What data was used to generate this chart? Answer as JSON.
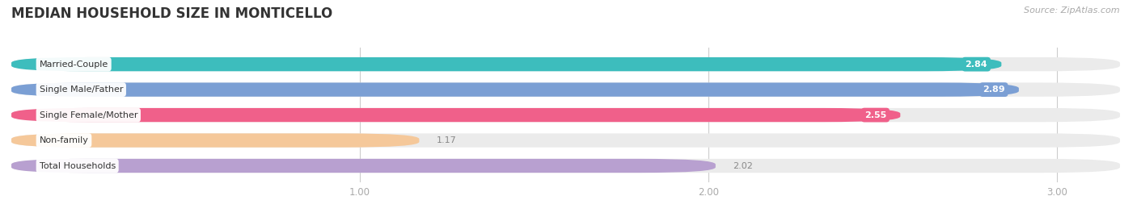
{
  "title": "MEDIAN HOUSEHOLD SIZE IN MONTICELLO",
  "source": "Source: ZipAtlas.com",
  "categories": [
    "Married-Couple",
    "Single Male/Father",
    "Single Female/Mother",
    "Non-family",
    "Total Households"
  ],
  "values": [
    2.84,
    2.89,
    2.55,
    1.17,
    2.02
  ],
  "bar_colors": [
    "#3dbdbd",
    "#7b9fd4",
    "#f0608a",
    "#f5c89a",
    "#b8a0d0"
  ],
  "bar_bg_colors": [
    "#ebebeb",
    "#ebebeb",
    "#ebebeb",
    "#ebebeb",
    "#ebebeb"
  ],
  "value_label_colors": [
    "white",
    "white",
    "white",
    "#888888",
    "#888888"
  ],
  "xlim": [
    0,
    3.18
  ],
  "xticks": [
    1.0,
    2.0,
    3.0
  ],
  "figsize": [
    14.06,
    2.69
  ],
  "dpi": 100
}
